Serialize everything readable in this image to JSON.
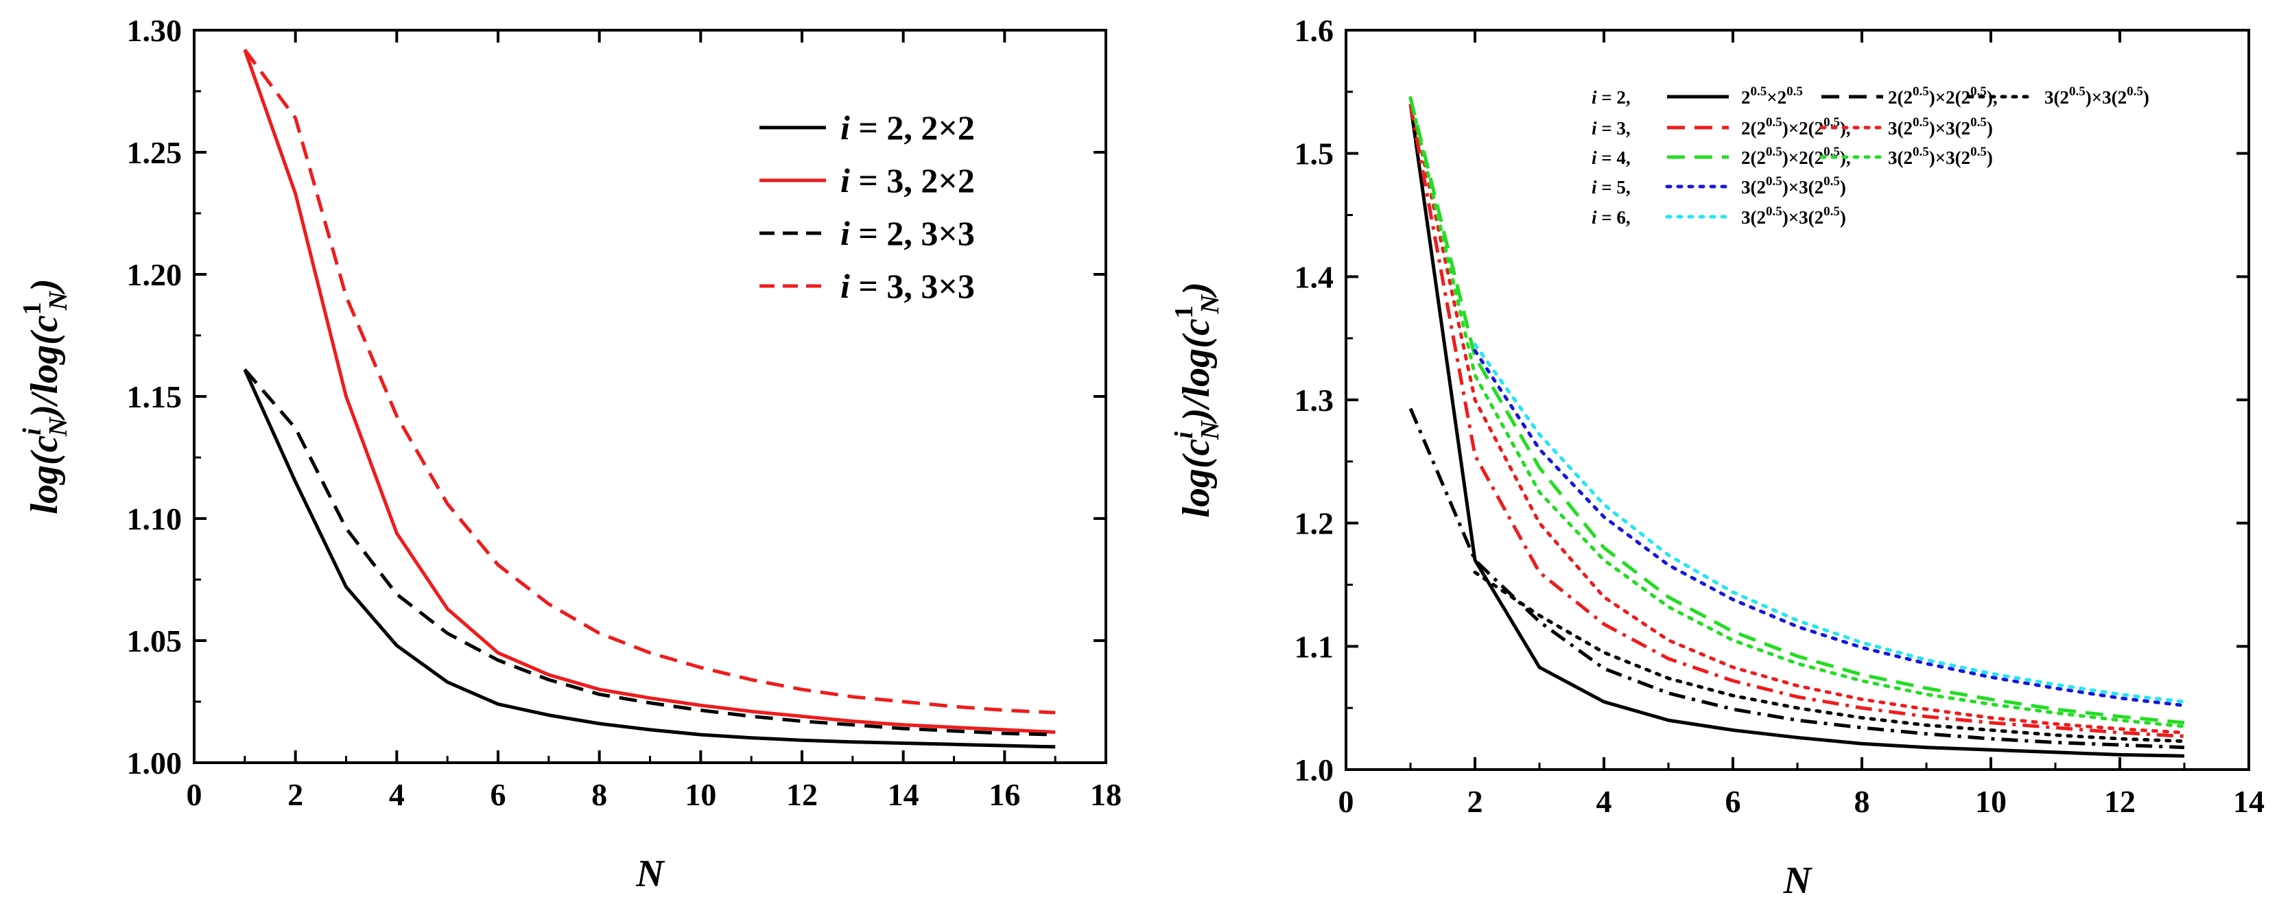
{
  "colors": {
    "black": "#000000",
    "red": "#ee1c1c",
    "green": "#22dd22",
    "blue": "#1616dd",
    "cyan": "#22e6f2"
  },
  "chart_data": [
    {
      "type": "line",
      "title": "",
      "xlabel": "N",
      "ylabel_parts": {
        "a": "log(",
        "sup": "i",
        "sub": "N",
        "b": ")/log(",
        "sup2": "1",
        "sub2": "N",
        "c": ")",
        "var": "c"
      },
      "xlim": [
        0,
        18
      ],
      "ylim": [
        1.0,
        1.3
      ],
      "xticks": [
        "0",
        "2",
        "4",
        "6",
        "8",
        "10",
        "12",
        "14",
        "16",
        "18"
      ],
      "yticks": [
        "1.00",
        "1.05",
        "1.10",
        "1.15",
        "1.20",
        "1.25",
        "1.30"
      ],
      "legend_position": "top-right",
      "series": [
        {
          "name": "i = 2, 2×2",
          "label": [
            "i",
            " = 2, 2×2"
          ],
          "color": "#000000",
          "dash": "solid",
          "x": [
            1,
            2,
            3,
            4,
            5,
            6,
            7,
            8,
            9,
            10,
            11,
            12,
            13,
            14,
            15,
            16,
            17
          ],
          "y": [
            1.161,
            1.115,
            1.072,
            1.048,
            1.033,
            1.024,
            1.0195,
            1.016,
            1.0135,
            1.0115,
            1.0102,
            1.0092,
            1.0085,
            1.008,
            1.0075,
            1.007,
            1.0065
          ]
        },
        {
          "name": "i = 3, 2×2",
          "label": [
            "i",
            " = 3, 2×2"
          ],
          "color": "#ee1c1c",
          "dash": "solid",
          "x": [
            1,
            2,
            3,
            4,
            5,
            6,
            7,
            8,
            9,
            10,
            11,
            12,
            13,
            14,
            15,
            16,
            17
          ],
          "y": [
            1.292,
            1.233,
            1.15,
            1.094,
            1.063,
            1.045,
            1.036,
            1.03,
            1.0265,
            1.0235,
            1.021,
            1.019,
            1.017,
            1.0155,
            1.0145,
            1.0135,
            1.0125
          ]
        },
        {
          "name": "i = 2, 3×3",
          "label": [
            "i",
            " = 2, 3×3"
          ],
          "color": "#000000",
          "dash": "dashed",
          "x": [
            1,
            2,
            3,
            4,
            5,
            6,
            7,
            8,
            9,
            10,
            11,
            12,
            13,
            14,
            15,
            16,
            17
          ],
          "y": [
            1.161,
            1.137,
            1.096,
            1.069,
            1.053,
            1.042,
            1.034,
            1.028,
            1.0245,
            1.0215,
            1.019,
            1.017,
            1.0155,
            1.014,
            1.013,
            1.012,
            1.0115
          ]
        },
        {
          "name": "i = 3, 3×3",
          "label": [
            "i",
            " = 3, 3×3"
          ],
          "color": "#ee1c1c",
          "dash": "dashed",
          "x": [
            1,
            2,
            3,
            4,
            5,
            6,
            7,
            8,
            9,
            10,
            11,
            12,
            13,
            14,
            15,
            16,
            17
          ],
          "y": [
            1.292,
            1.264,
            1.191,
            1.142,
            1.106,
            1.081,
            1.065,
            1.053,
            1.045,
            1.039,
            1.034,
            1.03,
            1.027,
            1.025,
            1.023,
            1.0215,
            1.0205
          ]
        }
      ]
    },
    {
      "type": "line",
      "title": "",
      "xlabel": "N",
      "ylabel_parts": {
        "a": "log(",
        "sup": "i",
        "sub": "N",
        "b": ")/log(",
        "sup2": "1",
        "sub2": "N",
        "c": ")",
        "var": "c"
      },
      "xlim": [
        0,
        14
      ],
      "ylim": [
        1.0,
        1.6
      ],
      "xticks": [
        "0",
        "2",
        "4",
        "6",
        "8",
        "10",
        "12",
        "14"
      ],
      "yticks": [
        "1.0",
        "1.1",
        "1.2",
        "1.3",
        "1.4",
        "1.5",
        "1.6"
      ],
      "legend_position": "top",
      "legend_rows": [
        {
          "prefix": [
            "i",
            " = 2,"
          ],
          "entries": [
            {
              "label": "2^{0.5}×2^{0.5}",
              "color": "#000000",
              "dash": "solid"
            },
            {
              "label": "2(2^{0.5})×2(2^{0.5}),",
              "color": "#000000",
              "dash": "dashed"
            },
            {
              "label": "3(2^{0.5})×3(2^{0.5})",
              "color": "#000000",
              "dash": "dotted"
            }
          ]
        },
        {
          "prefix": [
            "i",
            " = 3,"
          ],
          "entries": [
            {
              "label": "2(2^{0.5})×2(2^{0.5}),",
              "color": "#ee1c1c",
              "dash": "dashed"
            },
            {
              "label": "3(2^{0.5})×3(2^{0.5})",
              "color": "#ee1c1c",
              "dash": "dotted"
            }
          ]
        },
        {
          "prefix": [
            "i",
            " = 4,"
          ],
          "entries": [
            {
              "label": "2(2^{0.5})×2(2^{0.5}),",
              "color": "#22dd22",
              "dash": "dashed"
            },
            {
              "label": "3(2^{0.5})×3(2^{0.5})",
              "color": "#22dd22",
              "dash": "dotted"
            }
          ]
        },
        {
          "prefix": [
            "i",
            " = 5,"
          ],
          "entries": [
            {
              "label": "3(2^{0.5})×3(2^{0.5})",
              "color": "#1616dd",
              "dash": "dotted"
            }
          ]
        },
        {
          "prefix": [
            "i",
            " = 6,"
          ],
          "entries": [
            {
              "label": "3(2^{0.5})×3(2^{0.5})",
              "color": "#22e6f2",
              "dash": "dotted"
            }
          ]
        }
      ],
      "series": [
        {
          "name": "i=2, 2^0.5×2^0.5",
          "color": "#000000",
          "dash": "solid",
          "x": [
            1,
            2,
            3,
            4,
            5,
            6,
            7,
            8,
            9,
            10,
            11,
            12,
            13
          ],
          "y": [
            1.54,
            1.17,
            1.083,
            1.055,
            1.04,
            1.032,
            1.026,
            1.021,
            1.018,
            1.016,
            1.014,
            1.012,
            1.011
          ]
        },
        {
          "name": "i=2, 2(2^0.5)×2(2^0.5)",
          "color": "#000000",
          "dash": "dashdot",
          "x": [
            1,
            2,
            3,
            4,
            5,
            6,
            7,
            8,
            9,
            10,
            11,
            12,
            13
          ],
          "y": [
            1.293,
            1.17,
            1.12,
            1.082,
            1.062,
            1.049,
            1.04,
            1.034,
            1.029,
            1.025,
            1.022,
            1.02,
            1.018
          ]
        },
        {
          "name": "i=2, 3(2^0.5)×3(2^0.5)",
          "color": "#000000",
          "dash": "dotted",
          "x": [
            2,
            3,
            4,
            5,
            6,
            7,
            8,
            9,
            10,
            11,
            12,
            13
          ],
          "y": [
            1.16,
            1.125,
            1.095,
            1.074,
            1.06,
            1.05,
            1.042,
            1.036,
            1.032,
            1.028,
            1.025,
            1.023
          ]
        },
        {
          "name": "i=3, 2(2^0.5)×2(2^0.5)",
          "color": "#ee1c1c",
          "dash": "dashdot",
          "x": [
            1,
            2,
            3,
            4,
            5,
            6,
            7,
            8,
            9,
            10,
            11,
            12,
            13
          ],
          "y": [
            1.54,
            1.255,
            1.16,
            1.118,
            1.09,
            1.072,
            1.059,
            1.05,
            1.043,
            1.038,
            1.034,
            1.03,
            1.027
          ]
        },
        {
          "name": "i=3, 3(2^0.5)×3(2^0.5)",
          "color": "#ee1c1c",
          "dash": "dotted",
          "x": [
            1,
            2,
            3,
            4,
            5,
            6,
            7,
            8,
            9,
            10,
            11,
            12,
            13
          ],
          "y": [
            1.545,
            1.3,
            1.2,
            1.14,
            1.105,
            1.083,
            1.068,
            1.057,
            1.049,
            1.042,
            1.037,
            1.033,
            1.03
          ]
        },
        {
          "name": "i=4, 2(2^0.5)×2(2^0.5)",
          "color": "#22dd22",
          "dash": "dashed",
          "x": [
            1,
            2,
            3,
            4,
            5,
            6,
            7,
            8,
            9,
            10,
            11,
            12,
            13
          ],
          "y": [
            1.545,
            1.335,
            1.245,
            1.18,
            1.14,
            1.112,
            1.092,
            1.077,
            1.066,
            1.057,
            1.049,
            1.043,
            1.038
          ]
        },
        {
          "name": "i=4, 3(2^0.5)×3(2^0.5)",
          "color": "#22dd22",
          "dash": "dotted",
          "x": [
            1,
            2,
            3,
            4,
            5,
            6,
            7,
            8,
            9,
            10,
            11,
            12,
            13
          ],
          "y": [
            1.545,
            1.32,
            1.225,
            1.17,
            1.132,
            1.105,
            1.086,
            1.072,
            1.061,
            1.053,
            1.046,
            1.04,
            1.035
          ]
        },
        {
          "name": "i=5, 3(2^0.5)×3(2^0.5)",
          "color": "#1616dd",
          "dash": "dotted",
          "x": [
            2,
            3,
            4,
            5,
            6,
            7,
            8,
            9,
            10,
            11,
            12,
            13
          ],
          "y": [
            1.34,
            1.26,
            1.205,
            1.166,
            1.138,
            1.116,
            1.099,
            1.086,
            1.075,
            1.066,
            1.058,
            1.052
          ]
        },
        {
          "name": "i=6, 3(2^0.5)×3(2^0.5)",
          "color": "#22e6f2",
          "dash": "dotted",
          "x": [
            2,
            3,
            4,
            5,
            6,
            7,
            8,
            9,
            10,
            11,
            12,
            13
          ],
          "y": [
            1.345,
            1.272,
            1.215,
            1.174,
            1.144,
            1.121,
            1.103,
            1.089,
            1.078,
            1.069,
            1.061,
            1.055
          ]
        }
      ]
    }
  ]
}
